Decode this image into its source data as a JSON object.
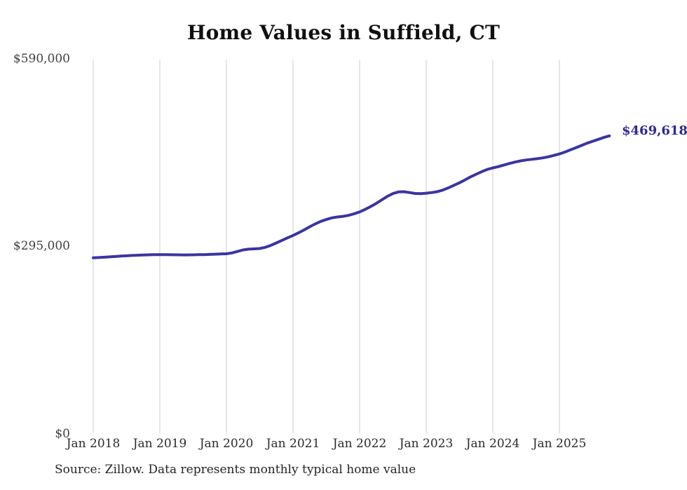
{
  "chart_data": {
    "type": "line",
    "title": "Home Values in Suffield, CT",
    "end_label": "$469,618",
    "latest_value": 469618,
    "source_note": "Source: Zillow. Data represents monthly typical home value",
    "frequency": "monthly",
    "x_start": "2018-01",
    "x_end": "2025-10",
    "x_tick_labels": [
      "Jan 2018",
      "Jan 2019",
      "Jan 2020",
      "Jan 2021",
      "Jan 2022",
      "Jan 2023",
      "Jan 2024",
      "Jan 2025"
    ],
    "y_tick_labels": [
      "$590,000",
      "$295,000",
      "$0"
    ],
    "y_tick_values": [
      590000,
      295000,
      0
    ],
    "ylim": [
      0,
      590000
    ],
    "grid": "vertical-only",
    "legend": "none",
    "line_color": "#3a35a0",
    "grid_color": "#cccccc",
    "series": [
      {
        "name": "Typical home value",
        "values": [
          277000,
          277400,
          277900,
          278500,
          279100,
          279700,
          280200,
          280700,
          281100,
          281400,
          281700,
          281900,
          282000,
          281900,
          281800,
          281700,
          281600,
          281600,
          281700,
          281900,
          282100,
          282400,
          282700,
          283000,
          283400,
          284700,
          287000,
          289500,
          290700,
          291100,
          291700,
          293600,
          296600,
          300500,
          304500,
          308500,
          312300,
          316500,
          321000,
          326000,
          330500,
          334500,
          337500,
          340000,
          341500,
          342500,
          344000,
          346500,
          349500,
          353500,
          358000,
          363000,
          368500,
          374000,
          378500,
          381000,
          381300,
          380000,
          378600,
          378300,
          379000,
          380000,
          381500,
          384000,
          387500,
          391500,
          395500,
          400000,
          404800,
          409000,
          413000,
          416500,
          419000,
          421000,
          423500,
          426000,
          428200,
          430000,
          431500,
          432500,
          433500,
          434800,
          436500,
          438700,
          441000,
          444000,
          447500,
          451000,
          454500,
          458000,
          461000,
          464000,
          467000,
          469618
        ]
      }
    ]
  }
}
